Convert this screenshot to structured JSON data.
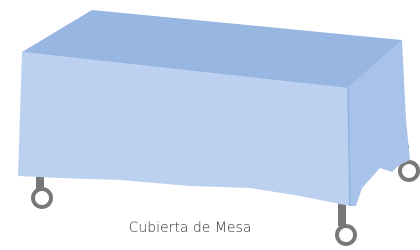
{
  "caption": "Cubierta de Mesa"
}
